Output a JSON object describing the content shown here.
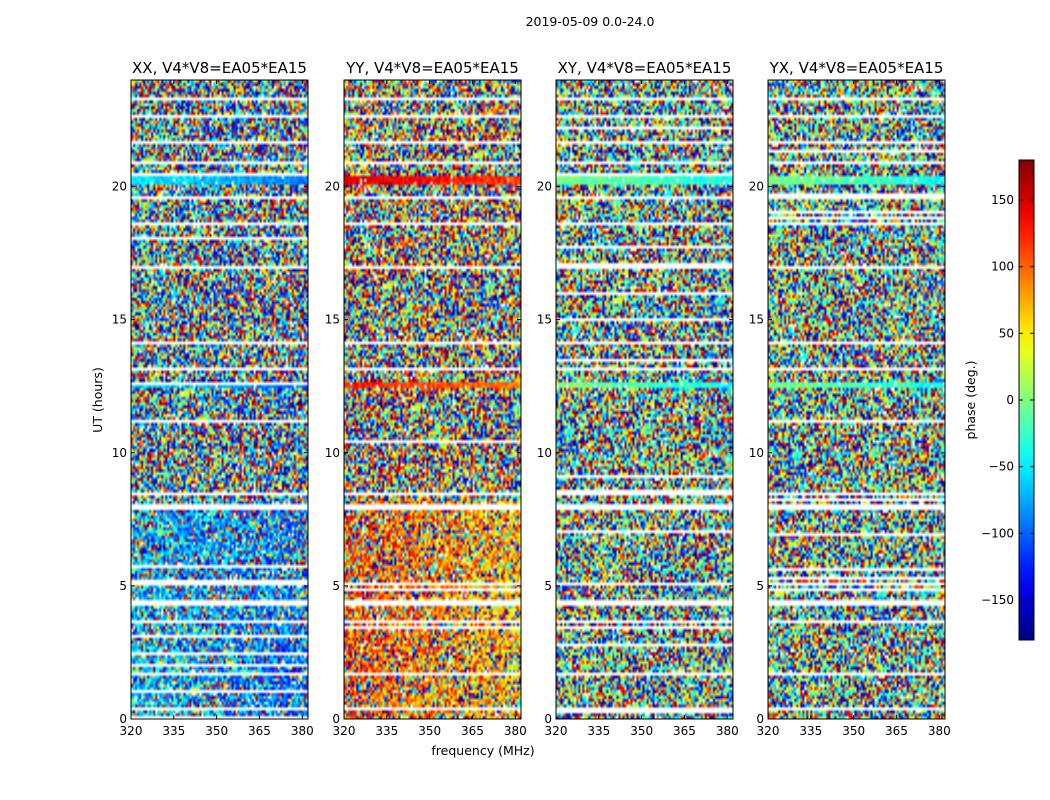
{
  "chart_data": {
    "type": "heatmap",
    "suptitle": "2019-05-09 0.0-24.0",
    "xlabel": "frequency (MHz)",
    "ylabel": "UT (hours)",
    "xlim": [
      320,
      382
    ],
    "ylim": [
      0,
      24
    ],
    "xticks": [
      320,
      335,
      350,
      365,
      380
    ],
    "yticks": [
      0,
      5,
      10,
      15,
      20
    ],
    "colorbar": {
      "label": "phase (deg.)",
      "range": [
        -180,
        180
      ],
      "ticks": [
        150,
        100,
        50,
        0,
        -50,
        -100,
        -150
      ],
      "tick_labels": [
        "150",
        "100",
        "50",
        "0",
        "−50",
        "−100",
        "−150"
      ],
      "colormap": "jet"
    },
    "panels": [
      {
        "title": "XX, V4*V8=EA05*EA15",
        "mean_phase_deg": -60
      },
      {
        "title": "YY, V4*V8=EA05*EA15",
        "mean_phase_deg": 110
      },
      {
        "title": "XY, V4*V8=EA05*EA15",
        "mean_phase_deg": 0
      },
      {
        "title": "YX, V4*V8=EA05*EA15",
        "mean_phase_deg": 0
      }
    ],
    "flagged_time_ranges_hours": [
      [
        0.3,
        0.45
      ],
      [
        1.6,
        1.75
      ],
      [
        3.55,
        3.7
      ],
      [
        4.3,
        4.42
      ],
      [
        5.05,
        5.15
      ],
      [
        7.9,
        8.05
      ],
      [
        8.35,
        8.5
      ],
      [
        11.4,
        11.5
      ],
      [
        13.05,
        13.15
      ],
      [
        14.1,
        14.2
      ],
      [
        15.55,
        15.65
      ],
      [
        16.95,
        17.05
      ],
      [
        18.55,
        18.65
      ],
      [
        19.55,
        19.65
      ],
      [
        20.85,
        20.95
      ],
      [
        21.6,
        21.7
      ],
      [
        22.55,
        22.65
      ],
      [
        23.2,
        23.3
      ]
    ],
    "coherent_bands_hours": [
      {
        "y": [
          12.4,
          12.65
        ],
        "phase_deg": [
          -60,
          130,
          0,
          0
        ]
      },
      {
        "y": [
          20.1,
          20.35
        ],
        "phase_deg": [
          -50,
          150,
          0,
          0
        ]
      }
    ]
  }
}
